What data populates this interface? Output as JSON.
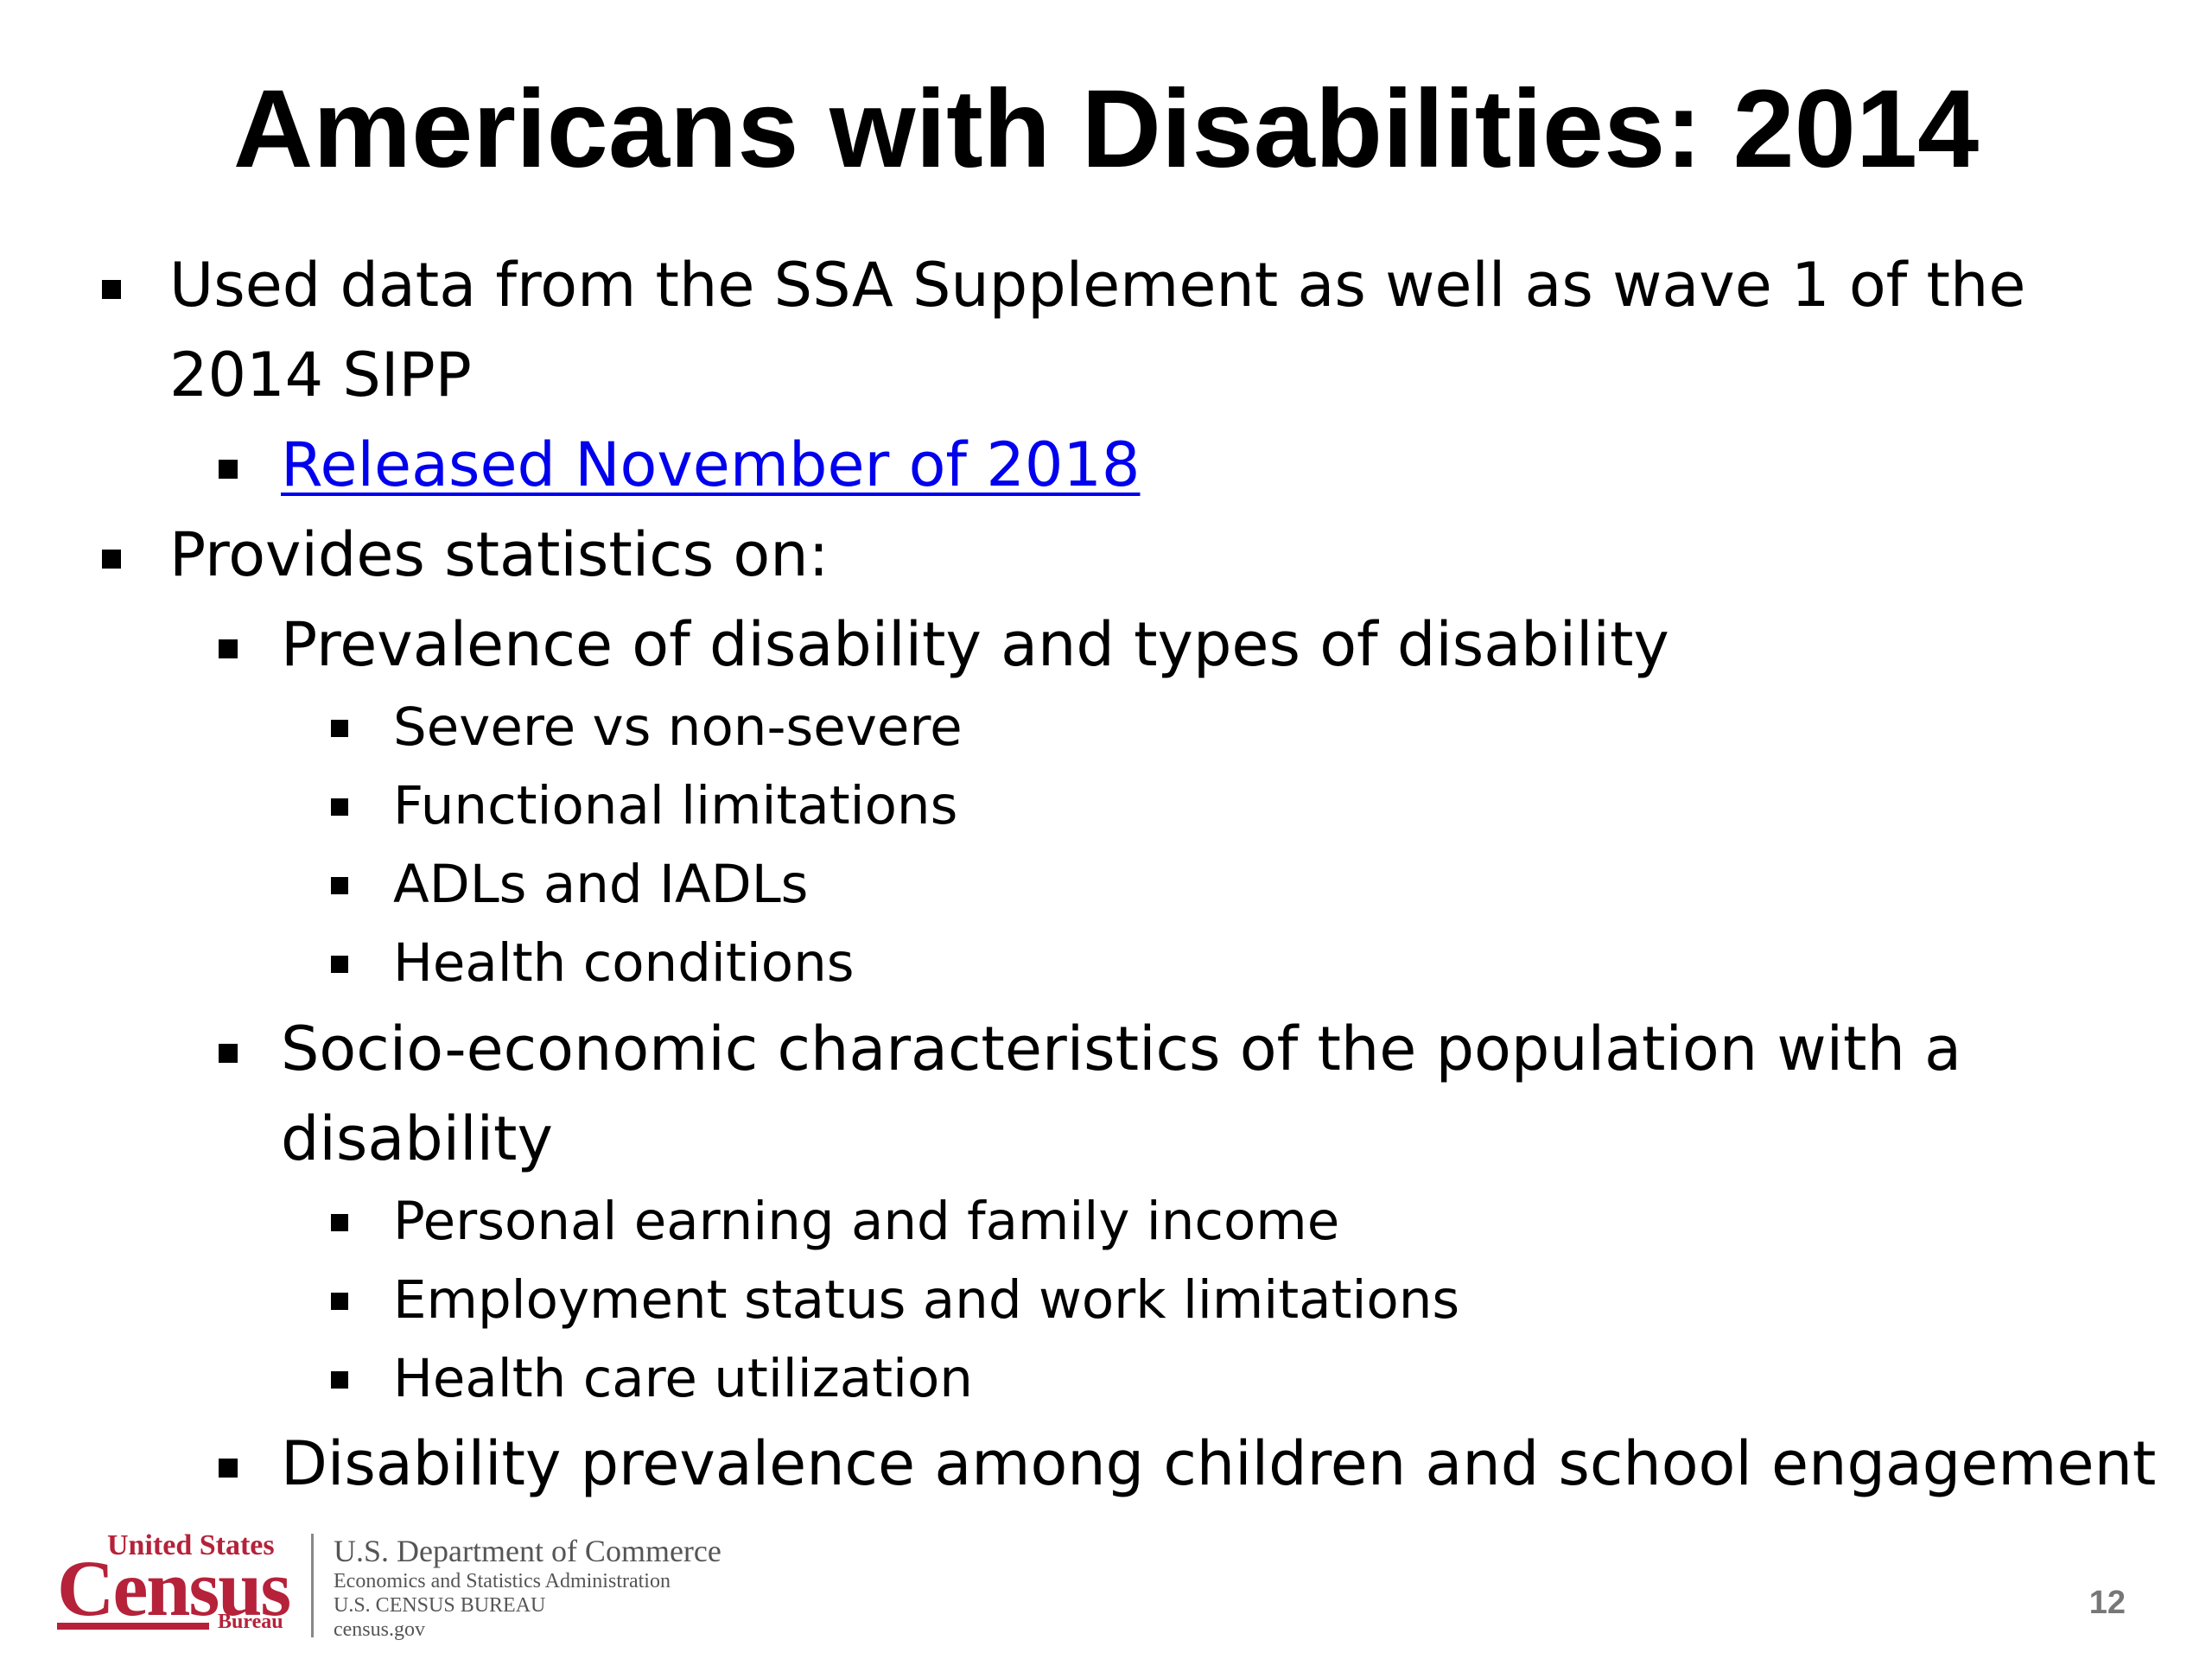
{
  "slide": {
    "title": "Americans with Disabilities: 2014",
    "page_number": "12"
  },
  "bullets": {
    "b1_line1": "Used data from the SSA Supplement as well as wave 1 of the",
    "b1_line2": "2014 SIPP",
    "b1_sub1": "Released November of 2018",
    "b2": "Provides statistics on:",
    "b2_sub1": "Prevalence of disability and types of disability",
    "b2_sub1_items": [
      "Severe vs non-severe",
      "Functional limitations",
      "ADLs and IADLs",
      "Health conditions"
    ],
    "b2_sub2_line1": "Socio-economic characteristics of the population with a",
    "b2_sub2_line2": "disability",
    "b2_sub2_items": [
      "Personal earning and family income",
      "Employment status and work limitations",
      "Health care utilization"
    ],
    "b2_sub3": "Disability prevalence among children and school engagement"
  },
  "footer": {
    "logo_united_states": "United States",
    "logo_census": "Census",
    "logo_bureau": "Bureau",
    "dept_line1": "U.S. Department of Commerce",
    "dept_line2": "Economics and Statistics Administration",
    "dept_line3": "U.S. CENSUS BUREAU",
    "dept_line4": "census.gov"
  },
  "colors": {
    "link": "#0000ee",
    "census_red": "#b5223a"
  }
}
